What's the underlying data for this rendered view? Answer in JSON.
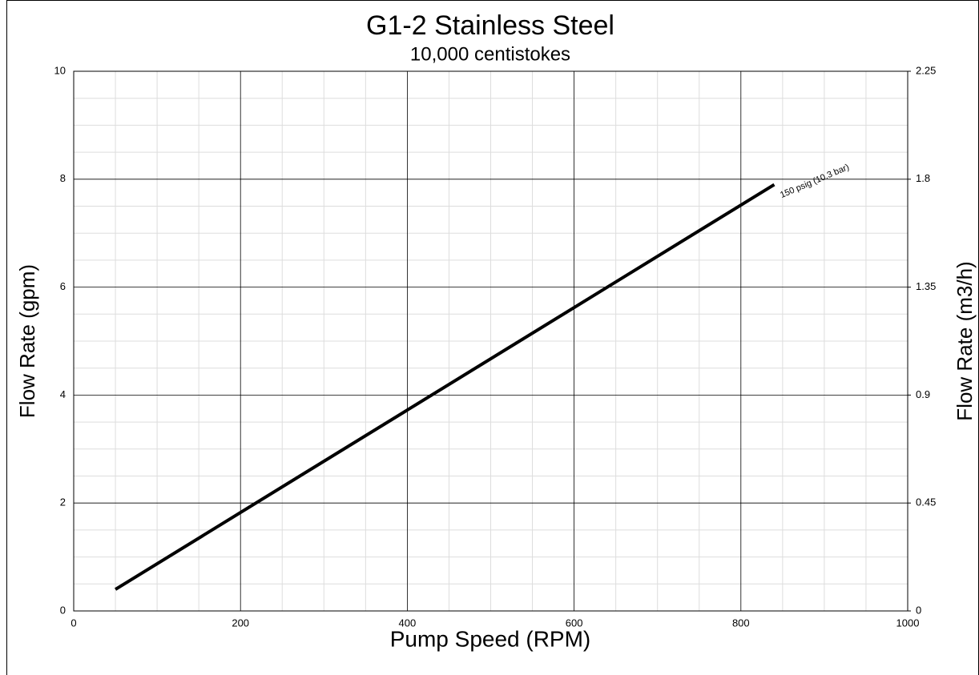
{
  "chart_data": {
    "type": "line",
    "title": "G1-2 Stainless Steel",
    "subtitle": "10,000 centistokes",
    "x_label": "Pump Speed (RPM)",
    "y_label": "Flow Rate (gpm)",
    "y2_label": "Flow Rate (m3/h)",
    "xlim": [
      0,
      1000
    ],
    "xticks": [
      0,
      200,
      400,
      600,
      800,
      1000
    ],
    "xminorticks": [
      50,
      100,
      150,
      250,
      300,
      350,
      450,
      500,
      550,
      650,
      700,
      750,
      850,
      900,
      950
    ],
    "ylim": [
      0,
      10
    ],
    "yticks": [
      0,
      2,
      4,
      6,
      8,
      10
    ],
    "yminorticks": [
      0.5,
      1,
      1.5,
      2.5,
      3,
      3.5,
      4.5,
      5,
      5.5,
      6.5,
      7,
      7.5,
      8.5,
      9,
      9.5
    ],
    "y2lim": [
      0,
      2.25
    ],
    "y2ticks": [
      0,
      0.45,
      0.9,
      1.35,
      1.8,
      2.25
    ],
    "grid": true,
    "series": [
      {
        "name": "150 psig (10.3 bar)",
        "color": "#000000",
        "x": [
          50,
          840
        ],
        "values": [
          0.4,
          7.9
        ]
      }
    ]
  }
}
